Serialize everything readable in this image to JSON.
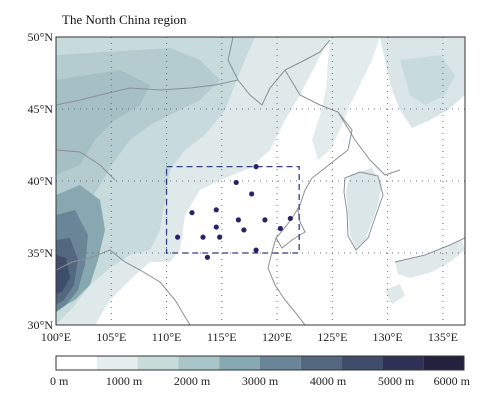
{
  "map": {
    "title": "The North China region",
    "lat_ticks": [
      {
        "value": 50,
        "label": "50°N"
      },
      {
        "value": 45,
        "label": "45°N"
      },
      {
        "value": 40,
        "label": "40°N"
      },
      {
        "value": 35,
        "label": "35°N"
      },
      {
        "value": 30,
        "label": "30°N"
      }
    ],
    "lon_ticks": [
      {
        "value": 100,
        "label": "100°E"
      },
      {
        "value": 105,
        "label": "105°E"
      },
      {
        "value": 110,
        "label": "110°E"
      },
      {
        "value": 115,
        "label": "115°E"
      },
      {
        "value": 120,
        "label": "120°E"
      },
      {
        "value": 125,
        "label": "125°E"
      },
      {
        "value": 130,
        "label": "130°E"
      },
      {
        "value": 135,
        "label": "135°E"
      }
    ],
    "extent": {
      "lon": [
        100,
        137
      ],
      "lat": [
        30,
        50
      ]
    },
    "region_box": {
      "lon": [
        110,
        122
      ],
      "lat": [
        35,
        41
      ]
    },
    "stations": [
      {
        "lon": 118.1,
        "lat": 41.0
      },
      {
        "lon": 116.3,
        "lat": 39.9
      },
      {
        "lon": 117.7,
        "lat": 39.1
      },
      {
        "lon": 112.3,
        "lat": 37.8
      },
      {
        "lon": 114.5,
        "lat": 38.0
      },
      {
        "lon": 116.5,
        "lat": 37.3
      },
      {
        "lon": 118.9,
        "lat": 37.3
      },
      {
        "lon": 121.2,
        "lat": 37.4
      },
      {
        "lon": 114.5,
        "lat": 36.8
      },
      {
        "lon": 117.0,
        "lat": 36.6
      },
      {
        "lon": 120.3,
        "lat": 36.7
      },
      {
        "lon": 111.0,
        "lat": 36.1
      },
      {
        "lon": 113.3,
        "lat": 36.1
      },
      {
        "lon": 114.8,
        "lat": 36.1
      },
      {
        "lon": 118.1,
        "lat": 35.2
      },
      {
        "lon": 113.7,
        "lat": 34.7
      }
    ],
    "colors": {
      "station": "#27236b",
      "box": "#2f3f86",
      "border": "#8a8f95",
      "grid": "#5d6a78"
    }
  },
  "colorbar": {
    "colors": [
      "#ffffff",
      "#e6eeee",
      "#c9dcdc",
      "#a9c5c8",
      "#86a8b0",
      "#6a8597",
      "#53677f",
      "#3f4c6c",
      "#2f3256",
      "#22223f"
    ],
    "labels": [
      {
        "value": 0,
        "label": "0 m"
      },
      {
        "value": 1000,
        "label": "1000 m"
      },
      {
        "value": 2000,
        "label": "2000 m"
      },
      {
        "value": 3000,
        "label": "3000 m"
      },
      {
        "value": 4000,
        "label": "4000 m"
      },
      {
        "value": 5000,
        "label": "5000 m"
      },
      {
        "value": 6000,
        "label": "6000 m"
      }
    ]
  }
}
